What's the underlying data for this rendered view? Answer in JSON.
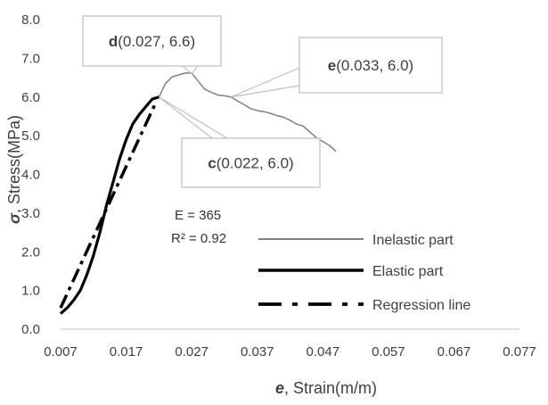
{
  "chart_data": {
    "type": "line",
    "xlabel": {
      "symbol": "e",
      "text": ", Strain(m/m)"
    },
    "ylabel": {
      "symbol": "σ",
      "text": ", Stress(MPa)"
    },
    "xlim": [
      0.007,
      0.077
    ],
    "ylim": [
      0.0,
      8.0
    ],
    "x_ticks": [
      "0.007",
      "0.017",
      "0.027",
      "0.037",
      "0.047",
      "0.057",
      "0.067",
      "0.077"
    ],
    "y_ticks": [
      "0.0",
      "1.0",
      "2.0",
      "3.0",
      "4.0",
      "5.0",
      "6.0",
      "7.0",
      "8.0"
    ],
    "grid": false,
    "series": [
      {
        "name": "Inelastic part",
        "color": "#808080",
        "style": "solid",
        "points": [
          [
            0.022,
            6.0
          ],
          [
            0.023,
            6.35
          ],
          [
            0.024,
            6.52
          ],
          [
            0.025,
            6.57
          ],
          [
            0.026,
            6.62
          ],
          [
            0.027,
            6.62
          ],
          [
            0.0278,
            6.45
          ],
          [
            0.0285,
            6.3
          ],
          [
            0.029,
            6.2
          ],
          [
            0.03,
            6.12
          ],
          [
            0.031,
            6.05
          ],
          [
            0.032,
            6.03
          ],
          [
            0.033,
            6.0
          ],
          [
            0.034,
            5.9
          ],
          [
            0.035,
            5.8
          ],
          [
            0.036,
            5.7
          ],
          [
            0.037,
            5.65
          ],
          [
            0.038,
            5.62
          ],
          [
            0.039,
            5.58
          ],
          [
            0.04,
            5.52
          ],
          [
            0.041,
            5.48
          ],
          [
            0.042,
            5.4
          ],
          [
            0.043,
            5.3
          ],
          [
            0.044,
            5.25
          ],
          [
            0.045,
            5.1
          ],
          [
            0.046,
            4.95
          ],
          [
            0.047,
            4.85
          ],
          [
            0.048,
            4.75
          ],
          [
            0.049,
            4.6
          ]
        ]
      },
      {
        "name": "Elastic part",
        "color": "#000000",
        "style": "solid",
        "points": [
          [
            0.007,
            0.4
          ],
          [
            0.008,
            0.55
          ],
          [
            0.009,
            0.75
          ],
          [
            0.01,
            1.0
          ],
          [
            0.011,
            1.4
          ],
          [
            0.012,
            1.9
          ],
          [
            0.013,
            2.5
          ],
          [
            0.014,
            3.2
          ],
          [
            0.015,
            3.8
          ],
          [
            0.016,
            4.4
          ],
          [
            0.017,
            4.9
          ],
          [
            0.018,
            5.3
          ],
          [
            0.019,
            5.55
          ],
          [
            0.02,
            5.75
          ],
          [
            0.021,
            5.95
          ],
          [
            0.022,
            6.0
          ]
        ]
      },
      {
        "name": "Regression line",
        "color": "#000000",
        "style": "dashdot",
        "points": [
          [
            0.007,
            0.55
          ],
          [
            0.0215,
            5.85
          ]
        ]
      }
    ],
    "annotations": [
      {
        "label": "d",
        "text": "(0.027, 6.6)",
        "point": [
          0.027,
          6.6
        ]
      },
      {
        "label": "e",
        "text": "(0.033, 6.0)",
        "point": [
          0.033,
          6.0
        ]
      },
      {
        "label": "c",
        "text": "(0.022, 6.0)",
        "point": [
          0.022,
          6.0
        ]
      }
    ],
    "regression_text": {
      "e_line": "E = 365",
      "r2_line": "R² = 0.92"
    },
    "legend_placement": "bottom-right"
  }
}
